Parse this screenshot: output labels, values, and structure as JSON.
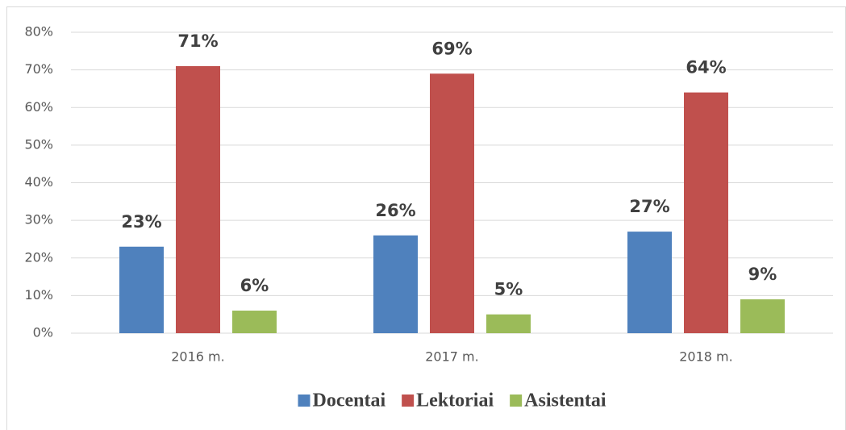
{
  "chart_data": {
    "type": "bar",
    "categories": [
      "2016 m.",
      "2017 m.",
      "2018 m."
    ],
    "series": [
      {
        "name": "Docentai",
        "color": "#4f81bd",
        "values": [
          23,
          26,
          27
        ],
        "value_labels": [
          "23%",
          "26%",
          "27%"
        ]
      },
      {
        "name": "Lektoriai",
        "color": "#c0504d",
        "values": [
          71,
          69,
          64
        ],
        "value_labels": [
          "71%",
          "69%",
          "64%"
        ]
      },
      {
        "name": "Asistentai",
        "color": "#9bbb59",
        "values": [
          6,
          5,
          9
        ],
        "value_labels": [
          "6%",
          "5%",
          "9%"
        ]
      }
    ],
    "ylim": [
      0,
      80
    ],
    "yticks": [
      {
        "value": 0,
        "label": "0%"
      },
      {
        "value": 10,
        "label": "10%"
      },
      {
        "value": 20,
        "label": "20%"
      },
      {
        "value": 30,
        "label": "30%"
      },
      {
        "value": 40,
        "label": "40%"
      },
      {
        "value": 50,
        "label": "50%"
      },
      {
        "value": 60,
        "label": "60%"
      },
      {
        "value": 70,
        "label": "70%"
      },
      {
        "value": 80,
        "label": "80%"
      }
    ],
    "grid": true,
    "legend": "bottom"
  }
}
